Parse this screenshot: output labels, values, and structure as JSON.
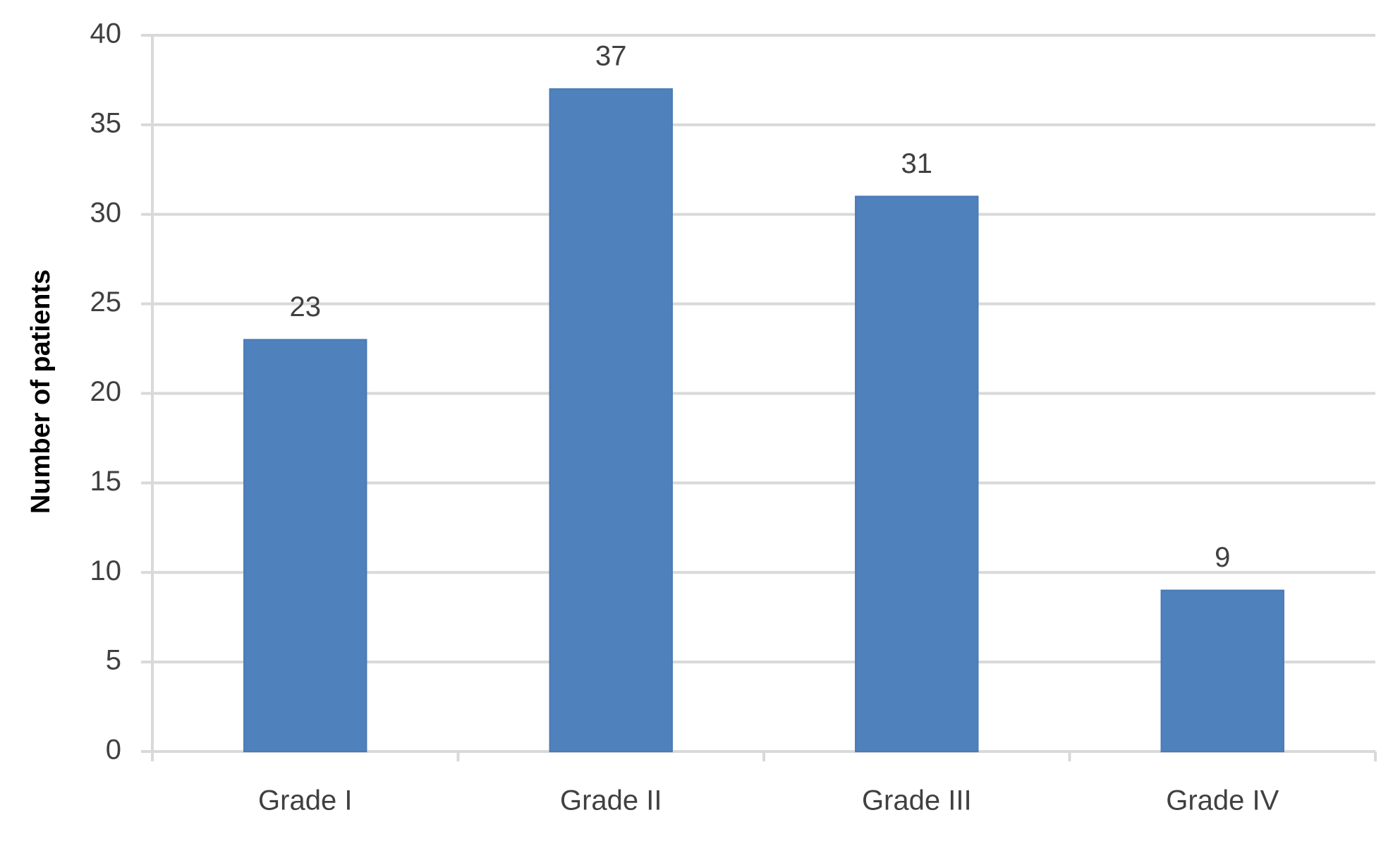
{
  "chart_data": {
    "type": "bar",
    "y_axis_label": "Number of patients",
    "categories": [
      "Grade I",
      "Grade II",
      "Grade III",
      "Grade IV"
    ],
    "values": [
      23,
      37,
      31,
      9
    ],
    "color": "#4f81bd",
    "ylim": [
      0,
      40
    ],
    "yticks": [
      0,
      5,
      10,
      15,
      20,
      25,
      30,
      35,
      40
    ],
    "grid": true
  }
}
